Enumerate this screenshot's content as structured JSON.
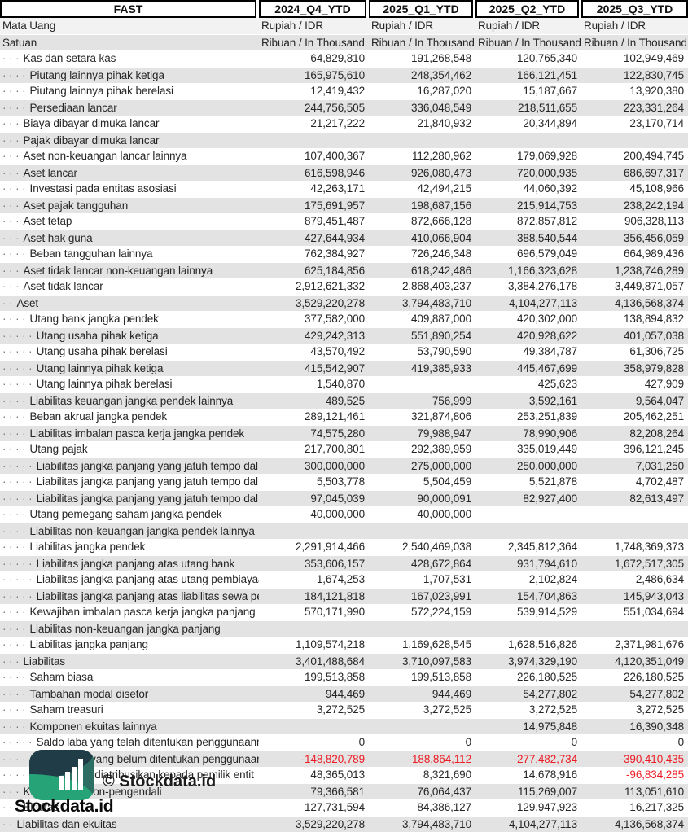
{
  "table": {
    "columns": [
      "FAST",
      "2024_Q4_YTD",
      "2025_Q1_YTD",
      "2025_Q2_YTD",
      "2025_Q3_YTD"
    ],
    "currency_row": {
      "label": "Mata Uang",
      "values": [
        "Rupiah / IDR",
        "Rupiah / IDR",
        "Rupiah / IDR",
        "Rupiah / IDR"
      ]
    },
    "unit_row": {
      "label": "Satuan",
      "values": [
        "Ribuan / In Thousand",
        "Ribuan / In Thousand",
        "Ribuan / In Thousand",
        "Ribuan / In Thousand"
      ]
    },
    "rows": [
      {
        "level": 3,
        "label": "Kas dan setara kas",
        "values": [
          "64,829,810",
          "191,268,548",
          "120,765,340",
          "102,949,469"
        ]
      },
      {
        "level": 4,
        "label": "Piutang lainnya pihak ketiga",
        "values": [
          "165,975,610",
          "248,354,462",
          "166,121,451",
          "122,830,745"
        ]
      },
      {
        "level": 4,
        "label": "Piutang lainnya pihak berelasi",
        "values": [
          "12,419,432",
          "16,287,020",
          "15,187,667",
          "13,920,380"
        ]
      },
      {
        "level": 4,
        "label": "Persediaan lancar",
        "values": [
          "244,756,505",
          "336,048,549",
          "218,511,655",
          "223,331,264"
        ]
      },
      {
        "level": 3,
        "label": "Biaya dibayar dimuka lancar",
        "values": [
          "21,217,222",
          "21,840,932",
          "20,344,894",
          "23,170,714"
        ]
      },
      {
        "level": 3,
        "label": "Pajak dibayar dimuka lancar",
        "values": [
          "",
          "",
          "",
          ""
        ]
      },
      {
        "level": 3,
        "label": "Aset non-keuangan lancar lainnya",
        "values": [
          "107,400,367",
          "112,280,962",
          "179,069,928",
          "200,494,745"
        ]
      },
      {
        "level": 3,
        "label": "Aset lancar",
        "values": [
          "616,598,946",
          "926,080,473",
          "720,000,935",
          "686,697,317"
        ]
      },
      {
        "level": 4,
        "label": "Investasi pada entitas asosiasi",
        "values": [
          "42,263,171",
          "42,494,215",
          "44,060,392",
          "45,108,966"
        ]
      },
      {
        "level": 3,
        "label": "Aset pajak tangguhan",
        "values": [
          "175,691,957",
          "198,687,156",
          "215,914,753",
          "238,242,194"
        ]
      },
      {
        "level": 3,
        "label": "Aset tetap",
        "values": [
          "879,451,487",
          "872,666,128",
          "872,857,812",
          "906,328,113"
        ]
      },
      {
        "level": 3,
        "label": "Aset hak guna",
        "values": [
          "427,644,934",
          "410,066,904",
          "388,540,544",
          "356,456,059"
        ]
      },
      {
        "level": 4,
        "label": "Beban tangguhan lainnya",
        "values": [
          "762,384,927",
          "726,246,348",
          "696,579,049",
          "664,989,436"
        ]
      },
      {
        "level": 3,
        "label": "Aset tidak lancar non-keuangan lainnya",
        "values": [
          "625,184,856",
          "618,242,486",
          "1,166,323,628",
          "1,238,746,289"
        ]
      },
      {
        "level": 3,
        "label": "Aset tidak lancar",
        "values": [
          "2,912,621,332",
          "2,868,403,237",
          "3,384,276,178",
          "3,449,871,057"
        ]
      },
      {
        "level": 2,
        "label": "Aset",
        "values": [
          "3,529,220,278",
          "3,794,483,710",
          "4,104,277,113",
          "4,136,568,374"
        ]
      },
      {
        "level": 4,
        "label": "Utang bank jangka pendek",
        "values": [
          "377,582,000",
          "409,887,000",
          "420,302,000",
          "138,894,832"
        ]
      },
      {
        "level": 5,
        "label": "Utang usaha pihak ketiga",
        "values": [
          "429,242,313",
          "551,890,254",
          "420,928,622",
          "401,057,038"
        ]
      },
      {
        "level": 5,
        "label": "Utang usaha pihak berelasi",
        "values": [
          "43,570,492",
          "53,790,590",
          "49,384,787",
          "61,306,725"
        ]
      },
      {
        "level": 5,
        "label": "Utang lainnya pihak ketiga",
        "values": [
          "415,542,907",
          "419,385,933",
          "445,467,699",
          "358,979,828"
        ]
      },
      {
        "level": 5,
        "label": "Utang lainnya pihak berelasi",
        "values": [
          "1,540,870",
          "",
          "425,623",
          "427,909"
        ]
      },
      {
        "level": 4,
        "label": "Liabilitas keuangan jangka pendek lainnya",
        "values": [
          "489,525",
          "756,999",
          "3,592,161",
          "9,564,047"
        ]
      },
      {
        "level": 4,
        "label": "Beban akrual jangka pendek",
        "values": [
          "289,121,461",
          "321,874,806",
          "253,251,839",
          "205,462,251"
        ]
      },
      {
        "level": 4,
        "label": "Liabilitas imbalan pasca kerja jangka pendek",
        "values": [
          "74,575,280",
          "79,988,947",
          "78,990,906",
          "82,208,264"
        ]
      },
      {
        "level": 4,
        "label": "Utang pajak",
        "values": [
          "217,700,801",
          "292,389,959",
          "335,019,449",
          "396,121,245"
        ]
      },
      {
        "level": 5,
        "label": "Liabilitas jangka panjang yang jatuh tempo dal",
        "values": [
          "300,000,000",
          "275,000,000",
          "250,000,000",
          "7,031,250"
        ]
      },
      {
        "level": 5,
        "label": "Liabilitas jangka panjang yang jatuh tempo dal",
        "values": [
          "5,503,778",
          "5,504,459",
          "5,521,878",
          "4,702,487"
        ]
      },
      {
        "level": 5,
        "label": "Liabilitas jangka panjang yang jatuh tempo dal",
        "values": [
          "97,045,039",
          "90,000,091",
          "82,927,400",
          "82,613,497"
        ]
      },
      {
        "level": 4,
        "label": "Utang pemegang saham jangka pendek",
        "values": [
          "40,000,000",
          "40,000,000",
          "",
          ""
        ]
      },
      {
        "level": 4,
        "label": "Liabilitas non-keuangan jangka pendek lainnya",
        "values": [
          "",
          "",
          "",
          ""
        ]
      },
      {
        "level": 4,
        "label": "Liabilitas jangka pendek",
        "values": [
          "2,291,914,466",
          "2,540,469,038",
          "2,345,812,364",
          "1,748,369,373"
        ]
      },
      {
        "level": 5,
        "label": "Liabilitas jangka panjang atas utang bank",
        "values": [
          "353,606,157",
          "428,672,864",
          "931,794,610",
          "1,672,517,305"
        ]
      },
      {
        "level": 5,
        "label": "Liabilitas jangka panjang atas utang pembiayaa",
        "values": [
          "1,674,253",
          "1,707,531",
          "2,102,824",
          "2,486,634"
        ]
      },
      {
        "level": 5,
        "label": "Liabilitas jangka panjang atas liabilitas sewa pe",
        "values": [
          "184,121,818",
          "167,023,991",
          "154,704,863",
          "145,943,043"
        ]
      },
      {
        "level": 4,
        "label": "Kewajiban imbalan pasca kerja jangka panjang",
        "values": [
          "570,171,990",
          "572,224,159",
          "539,914,529",
          "551,034,694"
        ]
      },
      {
        "level": 4,
        "label": "Liabilitas non-keuangan jangka panjang",
        "values": [
          "",
          "",
          "",
          ""
        ]
      },
      {
        "level": 4,
        "label": "Liabilitas jangka panjang",
        "values": [
          "1,109,574,218",
          "1,169,628,545",
          "1,628,516,826",
          "2,371,981,676"
        ]
      },
      {
        "level": 3,
        "label": "Liabilitas",
        "values": [
          "3,401,488,684",
          "3,710,097,583",
          "3,974,329,190",
          "4,120,351,049"
        ]
      },
      {
        "level": 4,
        "label": "Saham biasa",
        "values": [
          "199,513,858",
          "199,513,858",
          "226,180,525",
          "226,180,525"
        ]
      },
      {
        "level": 4,
        "label": "Tambahan modal disetor",
        "values": [
          "944,469",
          "944,469",
          "54,277,802",
          "54,277,802"
        ]
      },
      {
        "level": 4,
        "label": "Saham treasuri",
        "values": [
          "3,272,525",
          "3,272,525",
          "3,272,525",
          "3,272,525"
        ]
      },
      {
        "level": 4,
        "label": "Komponen ekuitas lainnya",
        "values": [
          "",
          "",
          "14,975,848",
          "16,390,348"
        ]
      },
      {
        "level": 5,
        "label": "Saldo laba yang telah ditentukan penggunaann",
        "values": [
          "0",
          "0",
          "0",
          "0"
        ]
      },
      {
        "level": 5,
        "label": "Saldo laba yang belum ditentukan penggunaan",
        "values": [
          "-148,820,789",
          "-188,864,112",
          "-277,482,734",
          "-390,410,435"
        ]
      },
      {
        "level": 4,
        "label": "Ekuitas yang diatribusikan kepada pemilik entit",
        "values": [
          "48,365,013",
          "8,321,690",
          "14,678,916",
          "-96,834,285"
        ]
      },
      {
        "level": 3,
        "label": "Kepentingan non-pengendali",
        "values": [
          "79,366,581",
          "76,064,437",
          "115,269,007",
          "113,051,610"
        ]
      },
      {
        "level": 3,
        "label": "Ekuitas",
        "values": [
          "127,731,594",
          "84,386,127",
          "129,947,923",
          "16,217,325"
        ]
      },
      {
        "level": 2,
        "label": "Liabilitas dan ekuitas",
        "values": [
          "3,529,220,278",
          "3,794,483,710",
          "4,104,277,113",
          "4,136,568,374"
        ]
      }
    ]
  },
  "watermark": {
    "copyright": "© Stockdata.id",
    "brand": "Stockdata.id"
  },
  "colors": {
    "negative_value": "#ed1c24",
    "stripe_gray": "#e3e3e3",
    "brand_dark_teal": "#203d47",
    "brand_teal": "#2d6e62",
    "brand_green": "#27a477"
  }
}
